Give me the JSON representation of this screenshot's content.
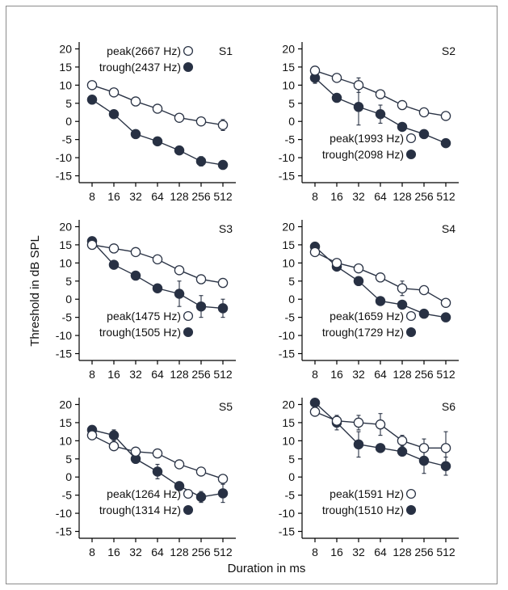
{
  "figure": {
    "ylabel": "Threshold in dB SPL",
    "xlabel": "Duration in ms"
  },
  "colors": {
    "filled": "#273043",
    "open_fill": "#ffffff",
    "stroke": "#2a3345",
    "frame": "#8a8a8a"
  },
  "chart_data": [
    {
      "type": "line",
      "title": "S1",
      "legend_position": "top-left",
      "categories": [
        "8",
        "16",
        "32",
        "64",
        "128",
        "256",
        "512"
      ],
      "yticks": [
        20,
        15,
        10,
        5,
        0,
        -5,
        -10,
        -15
      ],
      "ylim": [
        -16,
        21
      ],
      "series": [
        {
          "name": "peak(2667 Hz)",
          "marker": "open",
          "values": [
            10,
            8,
            5.5,
            3.5,
            1,
            0,
            -1
          ],
          "errors": [
            0,
            0,
            1,
            0,
            0,
            0,
            1.5
          ]
        },
        {
          "name": "trough(2437 Hz)",
          "marker": "filled",
          "values": [
            6,
            2,
            -3.5,
            -5.5,
            -8,
            -11,
            -12
          ],
          "errors": [
            0,
            0,
            0,
            0,
            0,
            1.3,
            0
          ]
        }
      ]
    },
    {
      "type": "line",
      "title": "S2",
      "legend_position": "bottom-left",
      "categories": [
        "8",
        "16",
        "32",
        "64",
        "128",
        "256",
        "512"
      ],
      "yticks": [
        20,
        15,
        10,
        5,
        0,
        -5,
        -10,
        -15
      ],
      "ylim": [
        -16,
        21
      ],
      "series": [
        {
          "name": "peak(1993 Hz)",
          "marker": "open",
          "values": [
            14,
            12,
            10,
            7.5,
            4.5,
            2.5,
            1.5
          ],
          "errors": [
            1.2,
            0,
            2,
            0,
            0,
            0,
            0
          ]
        },
        {
          "name": "trough(2098 Hz)",
          "marker": "filled",
          "values": [
            12,
            6.5,
            4,
            2,
            -1.5,
            -3.5,
            -6
          ],
          "errors": [
            1.5,
            0,
            5,
            2.5,
            0,
            0,
            0
          ]
        }
      ]
    },
    {
      "type": "line",
      "title": "S3",
      "legend_position": "bottom-left",
      "categories": [
        "8",
        "16",
        "32",
        "64",
        "128",
        "256",
        "512"
      ],
      "yticks": [
        20,
        15,
        10,
        5,
        0,
        -5,
        -10,
        -15
      ],
      "ylim": [
        -16,
        21
      ],
      "series": [
        {
          "name": "peak(1475 Hz)",
          "marker": "open",
          "values": [
            15,
            14,
            13,
            11,
            8,
            5.5,
            4.5
          ],
          "errors": [
            0,
            0,
            0,
            0,
            0,
            0,
            0
          ]
        },
        {
          "name": "trough(1505 Hz)",
          "marker": "filled",
          "values": [
            16,
            9.5,
            6.5,
            3,
            1.5,
            -2,
            -2.5
          ],
          "errors": [
            0,
            0,
            0,
            0,
            3.5,
            3,
            2.5
          ]
        }
      ]
    },
    {
      "type": "line",
      "title": "S4",
      "legend_position": "bottom-left",
      "categories": [
        "8",
        "16",
        "32",
        "64",
        "128",
        "256",
        "512"
      ],
      "yticks": [
        20,
        15,
        10,
        5,
        0,
        -5,
        -10,
        -15
      ],
      "ylim": [
        -16,
        21
      ],
      "series": [
        {
          "name": "peak(1659 Hz)",
          "marker": "open",
          "values": [
            13,
            10,
            8.5,
            6,
            3,
            2.5,
            -1
          ],
          "errors": [
            0,
            0,
            0,
            0,
            2,
            0,
            0
          ]
        },
        {
          "name": "trough(1729 Hz)",
          "marker": "filled",
          "values": [
            14.5,
            9,
            5,
            -0.5,
            -1.5,
            -4,
            -5
          ],
          "errors": [
            1,
            0,
            0,
            0,
            0,
            0,
            0
          ]
        }
      ]
    },
    {
      "type": "line",
      "title": "S5",
      "legend_position": "bottom-left",
      "categories": [
        "8",
        "16",
        "32",
        "64",
        "128",
        "256",
        "512"
      ],
      "yticks": [
        20,
        15,
        10,
        5,
        0,
        -5,
        -10,
        -15
      ],
      "ylim": [
        -16,
        21
      ],
      "series": [
        {
          "name": "peak(1264 Hz)",
          "marker": "open",
          "values": [
            11.5,
            8.5,
            7,
            6.5,
            3.5,
            1.5,
            -0.5
          ],
          "errors": [
            0,
            0,
            0,
            0,
            0,
            0,
            0
          ]
        },
        {
          "name": "trough(1314 Hz)",
          "marker": "filled",
          "values": [
            13,
            11.5,
            5,
            1.5,
            -2.5,
            -5.5,
            -4.5
          ],
          "errors": [
            1,
            1.5,
            0,
            2,
            0,
            1.5,
            2.5
          ]
        }
      ]
    },
    {
      "type": "line",
      "title": "S6",
      "legend_position": "bottom-left",
      "categories": [
        "8",
        "16",
        "32",
        "64",
        "128",
        "256",
        "512"
      ],
      "yticks": [
        20,
        15,
        10,
        5,
        0,
        -5,
        -10,
        -15
      ],
      "ylim": [
        -16,
        21
      ],
      "series": [
        {
          "name": "peak(1591 Hz)",
          "marker": "open",
          "values": [
            18,
            15.5,
            15,
            14.5,
            10,
            8,
            8
          ],
          "errors": [
            0,
            0,
            2,
            3,
            1.5,
            2.5,
            4.5
          ]
        },
        {
          "name": "trough(1510 Hz)",
          "marker": "filled",
          "values": [
            20.5,
            15,
            9,
            8,
            7,
            4.5,
            3
          ],
          "errors": [
            0,
            2,
            3.5,
            0,
            0,
            3.5,
            2.5
          ]
        }
      ]
    }
  ]
}
